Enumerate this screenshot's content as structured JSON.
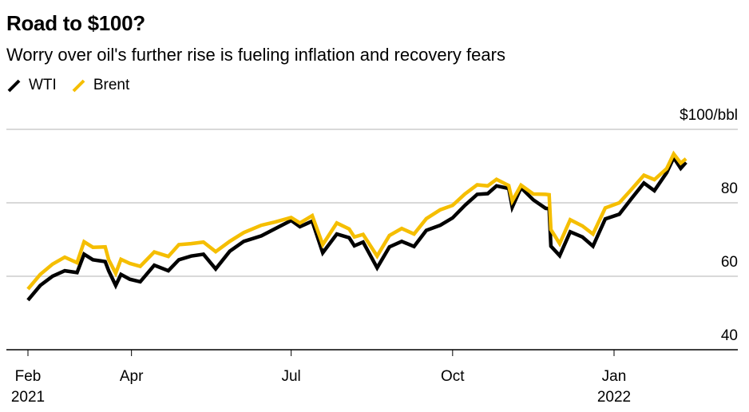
{
  "chart_data": {
    "type": "line",
    "title": "Road to $100?",
    "subtitle": "Worry over oil's further rise is fueling inflation and recovery fears",
    "xlabel": "",
    "ylabel": "$/bbl",
    "ylim": [
      40,
      100
    ],
    "yticks": [
      {
        "value": 100,
        "label": "$100/bbl"
      },
      {
        "value": 80,
        "label": "80"
      },
      {
        "value": 60,
        "label": "60"
      },
      {
        "value": 40,
        "label": "40"
      }
    ],
    "grid": true,
    "legend_position": "top-left",
    "x_range": [
      "2021-02-01",
      "2022-02-11"
    ],
    "xticks": [
      {
        "date": "2021-02-01",
        "label": "Feb",
        "sublabel": "2021"
      },
      {
        "date": "2021-04-01",
        "label": "Apr",
        "sublabel": ""
      },
      {
        "date": "2021-07-01",
        "label": "Jul",
        "sublabel": ""
      },
      {
        "date": "2021-10-01",
        "label": "Oct",
        "sublabel": ""
      },
      {
        "date": "2022-01-01",
        "label": "Jan",
        "sublabel": "2022"
      }
    ],
    "series": [
      {
        "name": "WTI",
        "color": "#000000",
        "points": [
          [
            "2021-02-01",
            53.5
          ],
          [
            "2021-02-08",
            57.5
          ],
          [
            "2021-02-15",
            60.0
          ],
          [
            "2021-02-22",
            61.5
          ],
          [
            "2021-03-01",
            61.0
          ],
          [
            "2021-03-05",
            66.0
          ],
          [
            "2021-03-10",
            64.5
          ],
          [
            "2021-03-17",
            64.0
          ],
          [
            "2021-03-19",
            61.5
          ],
          [
            "2021-03-23",
            57.5
          ],
          [
            "2021-03-26",
            60.5
          ],
          [
            "2021-03-31",
            59.2
          ],
          [
            "2021-04-06",
            58.5
          ],
          [
            "2021-04-14",
            63.0
          ],
          [
            "2021-04-22",
            61.5
          ],
          [
            "2021-04-28",
            64.5
          ],
          [
            "2021-05-05",
            65.5
          ],
          [
            "2021-05-12",
            66.0
          ],
          [
            "2021-05-19",
            62.0
          ],
          [
            "2021-05-27",
            66.8
          ],
          [
            "2021-06-04",
            69.5
          ],
          [
            "2021-06-14",
            71.0
          ],
          [
            "2021-06-22",
            73.0
          ],
          [
            "2021-07-01",
            75.2
          ],
          [
            "2021-07-06",
            73.5
          ],
          [
            "2021-07-13",
            75.0
          ],
          [
            "2021-07-19",
            66.4
          ],
          [
            "2021-07-27",
            71.5
          ],
          [
            "2021-08-03",
            70.5
          ],
          [
            "2021-08-06",
            68.3
          ],
          [
            "2021-08-11",
            69.3
          ],
          [
            "2021-08-19",
            62.3
          ],
          [
            "2021-08-26",
            68.0
          ],
          [
            "2021-09-02",
            69.5
          ],
          [
            "2021-09-09",
            68.1
          ],
          [
            "2021-09-16",
            72.5
          ],
          [
            "2021-09-24",
            73.9
          ],
          [
            "2021-10-01",
            75.9
          ],
          [
            "2021-10-08",
            79.3
          ],
          [
            "2021-10-15",
            82.3
          ],
          [
            "2021-10-21",
            82.5
          ],
          [
            "2021-10-26",
            84.6
          ],
          [
            "2021-11-02",
            83.9
          ],
          [
            "2021-11-04",
            78.8
          ],
          [
            "2021-11-09",
            84.1
          ],
          [
            "2021-11-16",
            80.8
          ],
          [
            "2021-11-23",
            78.5
          ],
          [
            "2021-11-25",
            78.4
          ],
          [
            "2021-11-26",
            68.2
          ],
          [
            "2021-12-01",
            65.6
          ],
          [
            "2021-12-07",
            72.1
          ],
          [
            "2021-12-14",
            70.7
          ],
          [
            "2021-12-20",
            68.2
          ],
          [
            "2021-12-27",
            75.6
          ],
          [
            "2022-01-04",
            76.9
          ],
          [
            "2022-01-11",
            81.2
          ],
          [
            "2022-01-18",
            85.4
          ],
          [
            "2022-01-24",
            83.3
          ],
          [
            "2022-01-31",
            88.2
          ],
          [
            "2022-02-04",
            92.3
          ],
          [
            "2022-02-08",
            89.4
          ],
          [
            "2022-02-11",
            91.0
          ]
        ]
      },
      {
        "name": "Brent",
        "color": "#F5BE00",
        "points": [
          [
            "2021-02-01",
            56.5
          ],
          [
            "2021-02-08",
            60.5
          ],
          [
            "2021-02-15",
            63.3
          ],
          [
            "2021-02-22",
            65.2
          ],
          [
            "2021-03-01",
            63.7
          ],
          [
            "2021-03-05",
            69.4
          ],
          [
            "2021-03-10",
            67.9
          ],
          [
            "2021-03-17",
            68.0
          ],
          [
            "2021-03-19",
            64.5
          ],
          [
            "2021-03-23",
            60.8
          ],
          [
            "2021-03-26",
            64.6
          ],
          [
            "2021-03-31",
            63.5
          ],
          [
            "2021-04-06",
            62.7
          ],
          [
            "2021-04-14",
            66.6
          ],
          [
            "2021-04-22",
            65.4
          ],
          [
            "2021-04-28",
            68.6
          ],
          [
            "2021-05-05",
            68.9
          ],
          [
            "2021-05-12",
            69.3
          ],
          [
            "2021-05-19",
            66.7
          ],
          [
            "2021-05-27",
            69.5
          ],
          [
            "2021-06-04",
            71.9
          ],
          [
            "2021-06-14",
            73.9
          ],
          [
            "2021-06-22",
            74.8
          ],
          [
            "2021-07-01",
            76.0
          ],
          [
            "2021-07-06",
            74.5
          ],
          [
            "2021-07-13",
            76.5
          ],
          [
            "2021-07-19",
            68.6
          ],
          [
            "2021-07-27",
            74.5
          ],
          [
            "2021-08-03",
            72.9
          ],
          [
            "2021-08-06",
            70.7
          ],
          [
            "2021-08-11",
            71.4
          ],
          [
            "2021-08-19",
            65.5
          ],
          [
            "2021-08-26",
            71.1
          ],
          [
            "2021-09-02",
            73.0
          ],
          [
            "2021-09-09",
            71.5
          ],
          [
            "2021-09-16",
            75.7
          ],
          [
            "2021-09-24",
            78.1
          ],
          [
            "2021-10-01",
            79.3
          ],
          [
            "2021-10-08",
            82.4
          ],
          [
            "2021-10-15",
            84.9
          ],
          [
            "2021-10-21",
            84.6
          ],
          [
            "2021-10-26",
            86.4
          ],
          [
            "2021-11-02",
            84.7
          ],
          [
            "2021-11-04",
            80.5
          ],
          [
            "2021-11-09",
            84.8
          ],
          [
            "2021-11-16",
            82.4
          ],
          [
            "2021-11-23",
            82.3
          ],
          [
            "2021-11-25",
            82.2
          ],
          [
            "2021-11-26",
            72.7
          ],
          [
            "2021-12-01",
            68.9
          ],
          [
            "2021-12-07",
            75.4
          ],
          [
            "2021-12-14",
            73.7
          ],
          [
            "2021-12-20",
            71.5
          ],
          [
            "2021-12-27",
            78.6
          ],
          [
            "2022-01-04",
            80.0
          ],
          [
            "2022-01-11",
            83.7
          ],
          [
            "2022-01-18",
            87.5
          ],
          [
            "2022-01-24",
            86.3
          ],
          [
            "2022-01-31",
            89.3
          ],
          [
            "2022-02-04",
            93.3
          ],
          [
            "2022-02-08",
            90.8
          ],
          [
            "2022-02-11",
            92.0
          ]
        ]
      }
    ]
  }
}
